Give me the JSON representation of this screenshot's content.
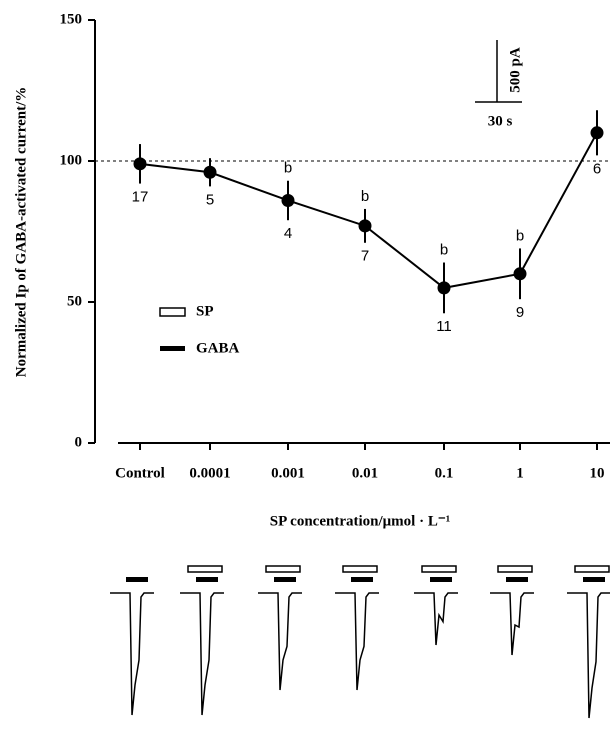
{
  "chart_data": {
    "type": "line",
    "y_label": "Normalized Ip of GABA-activated current/%",
    "x_label": "SP concentration/μmol · L⁻¹",
    "categories": [
      "Control",
      "0.0001",
      "0.001",
      "0.01",
      "0.1",
      "1",
      "10"
    ],
    "series": [
      {
        "name": "SP",
        "color": "#000000",
        "values": [
          99,
          96,
          86,
          77,
          55,
          60,
          110
        ],
        "errors": [
          7,
          5,
          7,
          6,
          9,
          9,
          8
        ],
        "n_labels": [
          "17",
          "5",
          "4",
          "7",
          "11",
          "9",
          "6"
        ],
        "significance": [
          null,
          null,
          "b",
          "b",
          "b",
          "b",
          null
        ]
      }
    ],
    "reference_line": 100,
    "ylim": [
      0,
      150
    ],
    "yticks": [
      0,
      50,
      100,
      150
    ],
    "legend": [
      "SP",
      "GABA"
    ],
    "scale_bar": {
      "current": "500 pA",
      "time": "30 s"
    }
  }
}
